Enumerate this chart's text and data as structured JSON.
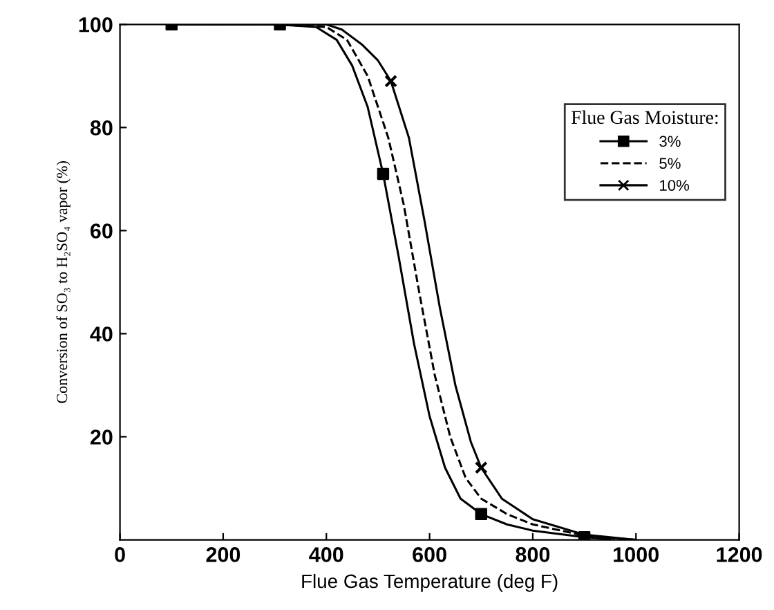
{
  "chart_data": {
    "type": "line",
    "xlabel": "Flue Gas Temperature (deg F)",
    "ylabel": "Conversion of SO₃ to H₂SO₄ vapor (%)",
    "legend_title": "Flue Gas Moisture:",
    "xlim": [
      0,
      1200
    ],
    "xticks": [
      0,
      200,
      400,
      600,
      800,
      1000,
      1200
    ],
    "ylim": [
      0,
      100
    ],
    "yticks": [
      20,
      40,
      60,
      80,
      100
    ],
    "grid": false,
    "legend": "top right",
    "series": [
      {
        "name": "3%",
        "color": "#000000",
        "line_style": "solid",
        "x": [
          100,
          300,
          380,
          420,
          450,
          480,
          510,
          540,
          570,
          600,
          630,
          660,
          700,
          750,
          800,
          900,
          950
        ],
        "values": [
          100,
          100,
          99.5,
          97,
          92,
          84,
          71,
          55,
          38,
          24,
          14,
          8,
          5,
          3,
          1.8,
          0.5,
          0.2
        ]
      },
      {
        "type": "scatter",
        "color": "#000000",
        "marker": "square",
        "x": [
          100,
          310,
          510,
          700,
          900
        ],
        "values": [
          100,
          100,
          71,
          5,
          0.5
        ]
      },
      {
        "name": "5%",
        "color": "#000000",
        "line_style": "dashed",
        "x": [
          100,
          300,
          400,
          440,
          480,
          520,
          550,
          580,
          610,
          640,
          670,
          700,
          750,
          800,
          900,
          1000
        ],
        "values": [
          100,
          100,
          99.5,
          97,
          90,
          78,
          65,
          48,
          32,
          20,
          12,
          8,
          5,
          3,
          0.8,
          0
        ]
      },
      {
        "name": "10%",
        "color": "#000000",
        "line_style": "solid",
        "x": [
          100,
          300,
          400,
          430,
          470,
          500,
          525,
          560,
          590,
          620,
          650,
          680,
          700,
          740,
          800,
          900,
          1000
        ],
        "values": [
          100,
          100,
          100,
          99,
          96,
          93,
          89,
          78,
          62,
          45,
          30,
          19,
          14,
          8,
          4,
          1,
          0
        ]
      },
      {
        "type": "scatter",
        "color": "#000000",
        "marker": "cross",
        "x": [
          525,
          700
        ],
        "values": [
          89,
          14
        ]
      }
    ]
  }
}
